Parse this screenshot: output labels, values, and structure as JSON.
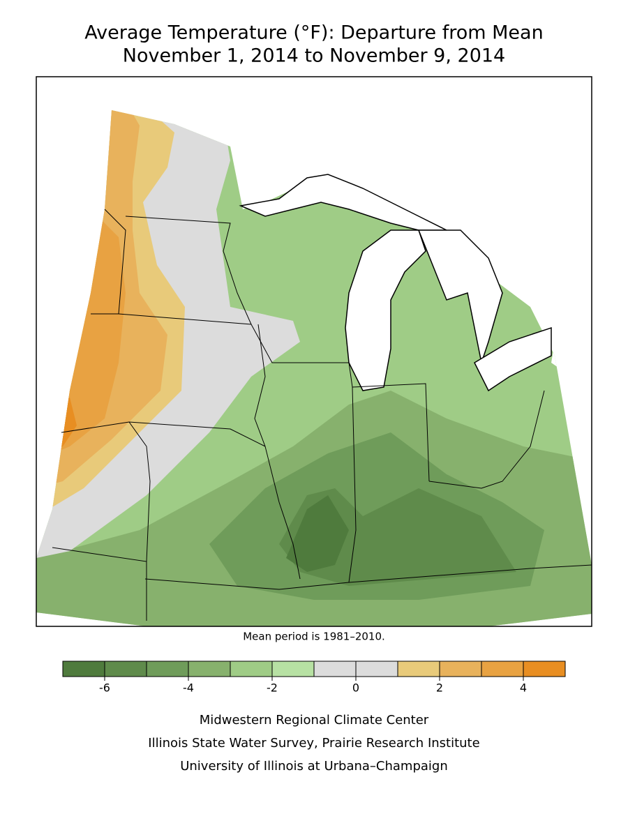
{
  "title": [
    "Average Temperature (°F): Departure from Mean",
    "November 1, 2014 to November 9, 2014"
  ],
  "note": "Mean period is 1981–2010.",
  "legend": {
    "bins": [
      -7,
      -6,
      -5,
      -4,
      -3,
      -2,
      -1,
      0,
      1,
      2,
      3,
      4,
      5
    ],
    "colors": [
      "#4f7b3d",
      "#5f8b4b",
      "#6f9c5a",
      "#87b16d",
      "#9fcc86",
      "#b7e1a3",
      "#dcdcdc",
      "#dcdcdc",
      "#e8ca7a",
      "#e8b25c",
      "#e8a242",
      "#e88e22"
    ],
    "ticks": [
      -6,
      -4,
      -2,
      0,
      2,
      4
    ]
  },
  "credits": [
    "Midwestern Regional Climate Center",
    "Illinois State Water Survey, Prairie Research Institute",
    "University of Illinois at Urbana–Champaign"
  ]
}
